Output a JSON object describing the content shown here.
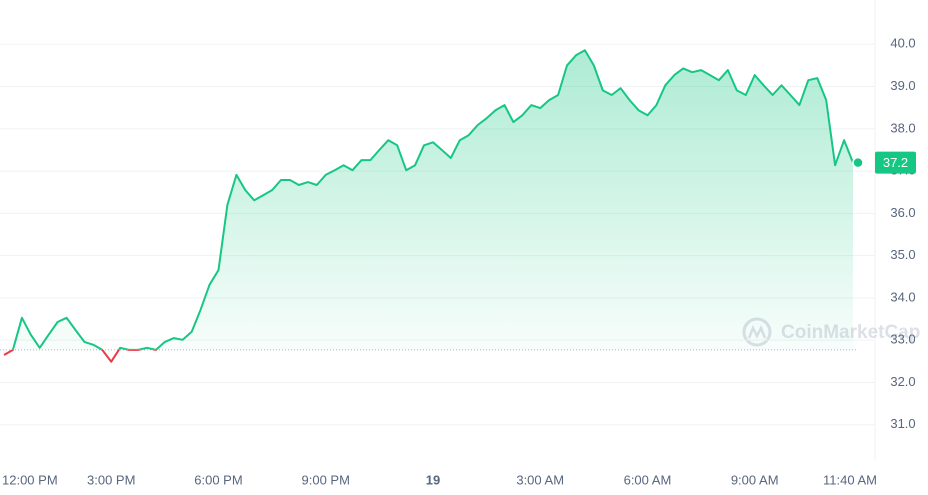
{
  "chart_data": {
    "type": "line",
    "baseline": 32.77,
    "current_price": {
      "value": 37.2,
      "label": "37.2"
    },
    "watermark": "CoinMarketCap",
    "up_color": "#16c784",
    "down_color": "#ea3943",
    "grid": true,
    "values": [
      32.65,
      32.77,
      33.53,
      33.13,
      32.82,
      33.13,
      33.43,
      33.53,
      33.24,
      32.96,
      32.89,
      32.77,
      32.49,
      32.82,
      32.77,
      32.77,
      32.82,
      32.77,
      32.96,
      33.05,
      33.01,
      33.2,
      33.72,
      34.31,
      34.66,
      36.2,
      36.91,
      36.55,
      36.31,
      36.43,
      36.55,
      36.79,
      36.79,
      36.67,
      36.74,
      36.67,
      36.91,
      37.02,
      37.14,
      37.02,
      37.26,
      37.26,
      37.5,
      37.73,
      37.61,
      37.02,
      37.14,
      37.61,
      37.68,
      37.5,
      37.31,
      37.73,
      37.85,
      38.09,
      38.25,
      38.44,
      38.56,
      38.16,
      38.32,
      38.56,
      38.49,
      38.68,
      38.8,
      39.5,
      39.74,
      39.86,
      39.5,
      38.91,
      38.8,
      38.96,
      38.68,
      38.44,
      38.32,
      38.56,
      39.03,
      39.27,
      39.43,
      39.34,
      39.39,
      39.27,
      39.15,
      39.39,
      38.91,
      38.8,
      39.27,
      39.03,
      38.8,
      39.03,
      38.8,
      38.56,
      39.15,
      39.2,
      38.68,
      37.14,
      37.73,
      37.2
    ],
    "xlim": [
      0,
      95
    ],
    "xticks": [
      {
        "value": 0,
        "label": "12:00 PM"
      },
      {
        "value": 12,
        "label": "3:00 PM"
      },
      {
        "value": 24,
        "label": "6:00 PM"
      },
      {
        "value": 36,
        "label": "9:00 PM"
      },
      {
        "value": 48,
        "label": "19"
      },
      {
        "value": 60,
        "label": "3:00 AM"
      },
      {
        "value": 72,
        "label": "6:00 AM"
      },
      {
        "value": 84,
        "label": "9:00 AM"
      },
      {
        "value": 94.67,
        "label": "11:40 AM"
      }
    ],
    "ylim": [
      30.0,
      41.0
    ],
    "yticks": [
      {
        "value": 31,
        "label": "31.0"
      },
      {
        "value": 32,
        "label": "32.0"
      },
      {
        "value": 33,
        "label": "33.0"
      },
      {
        "value": 34,
        "label": "34.0"
      },
      {
        "value": 35,
        "label": "35.0"
      },
      {
        "value": 36,
        "label": "36.0"
      },
      {
        "value": 37,
        "label": "37.0"
      },
      {
        "value": 38,
        "label": "38.0"
      },
      {
        "value": 39,
        "label": "39.0"
      },
      {
        "value": 40,
        "label": "40.0"
      }
    ]
  }
}
